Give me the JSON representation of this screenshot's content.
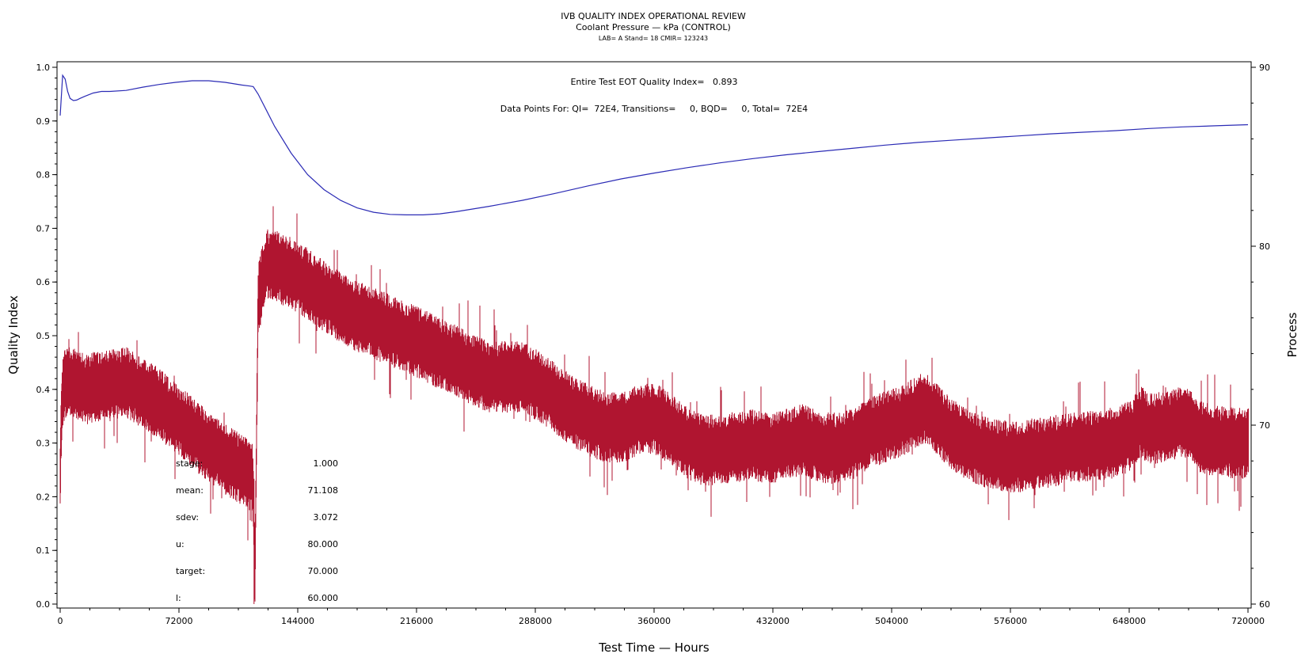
{
  "chart_data": {
    "type": "line",
    "title": "IVB QUALITY INDEX OPERATIONAL REVIEW",
    "subtitle": "Coolant Pressure — kPa (CONTROL)",
    "info_line": "LAB= A Stand= 18 CMIR= 123243",
    "xlabel": "Test Time — Hours",
    "ylabel": "Quality Index",
    "y2label": "Process",
    "xlim": [
      0,
      720000
    ],
    "ylim": [
      0,
      1.0
    ],
    "y2lim": [
      60,
      90
    ],
    "x_ticks": [
      "0",
      "72000",
      "144000",
      "216000",
      "288000",
      "360000",
      "432000",
      "504000",
      "576000",
      "648000",
      "720000"
    ],
    "y_ticks": [
      "0.0",
      "0.1",
      "0.2",
      "0.3",
      "0.4",
      "0.5",
      "0.6",
      "0.7",
      "0.8",
      "0.9",
      "1.0"
    ],
    "y2_ticks": [
      "60",
      "70",
      "80",
      "90"
    ],
    "grid": false,
    "annotations": {
      "quality_index": "Entire Test EOT Quality Index=   0.893",
      "data_points": "Data Points For: QI=  72E4, Transitions=     0, BQD=     0, Total=  72E4"
    },
    "stats": [
      {
        "label": "stage:",
        "value": "1.000"
      },
      {
        "label": "mean:",
        "value": "71.108"
      },
      {
        "label": "sdev:",
        "value": "3.072"
      },
      {
        "label": "u:",
        "value": "80.000"
      },
      {
        "label": "target:",
        "value": "70.000"
      },
      {
        "label": "l:",
        "value": "60.000"
      }
    ],
    "series": [
      {
        "axis": "left",
        "color": "#2b2bb5",
        "x": [
          0,
          1500,
          3000,
          4500,
          6000,
          8000,
          10000,
          12000,
          15000,
          20000,
          25000,
          30000,
          40000,
          50000,
          60000,
          70000,
          80000,
          90000,
          100000,
          110000,
          115000,
          117000,
          120000,
          125000,
          130000,
          140000,
          150000,
          160000,
          170000,
          180000,
          190000,
          200000,
          210000,
          220000,
          230000,
          240000,
          260000,
          280000,
          300000,
          320000,
          340000,
          360000,
          380000,
          400000,
          420000,
          440000,
          460000,
          480000,
          500000,
          520000,
          540000,
          560000,
          580000,
          600000,
          620000,
          640000,
          660000,
          680000,
          700000,
          720000
        ],
        "values": [
          0.91,
          0.985,
          0.978,
          0.955,
          0.942,
          0.938,
          0.939,
          0.942,
          0.946,
          0.952,
          0.955,
          0.955,
          0.957,
          0.963,
          0.968,
          0.972,
          0.975,
          0.975,
          0.972,
          0.967,
          0.965,
          0.964,
          0.95,
          0.92,
          0.89,
          0.84,
          0.8,
          0.772,
          0.752,
          0.738,
          0.73,
          0.726,
          0.725,
          0.725,
          0.727,
          0.731,
          0.741,
          0.752,
          0.765,
          0.779,
          0.792,
          0.803,
          0.813,
          0.822,
          0.83,
          0.837,
          0.843,
          0.849,
          0.855,
          0.86,
          0.864,
          0.868,
          0.872,
          0.876,
          0.879,
          0.882,
          0.886,
          0.889,
          0.891,
          0.893
        ]
      },
      {
        "axis": "right",
        "color": "#b01530",
        "band": 2.0,
        "x": [
          0,
          500,
          1500,
          3000,
          6000,
          10000,
          15000,
          20000,
          30000,
          40000,
          50000,
          60000,
          70000,
          80000,
          90000,
          100000,
          110000,
          117000,
          118000,
          120000,
          125000,
          130000,
          140000,
          150000,
          160000,
          170000,
          180000,
          190000,
          200000,
          210000,
          220000,
          230000,
          240000,
          250000,
          260000,
          270000,
          280000,
          290000,
          300000,
          310000,
          320000,
          330000,
          340000,
          350000,
          360000,
          370000,
          380000,
          390000,
          400000,
          410000,
          420000,
          430000,
          440000,
          450000,
          460000,
          470000,
          480000,
          490000,
          500000,
          510000,
          520000,
          525000,
          530000,
          540000,
          550000,
          560000,
          570000,
          580000,
          590000,
          600000,
          610000,
          620000,
          630000,
          640000,
          650000,
          655000,
          660000,
          670000,
          680000,
          685000,
          690000,
          700000,
          710000,
          720000
        ],
        "values": [
          67.0,
          69.5,
          71.8,
          72.4,
          72.4,
          72.2,
          72.0,
          72.1,
          72.2,
          72.4,
          71.8,
          71.2,
          70.4,
          69.6,
          68.8,
          68.1,
          67.5,
          67.0,
          61.0,
          77.0,
          79.0,
          78.9,
          78.5,
          77.9,
          77.2,
          76.6,
          76.1,
          75.7,
          75.3,
          74.9,
          74.5,
          74.0,
          73.6,
          73.1,
          72.7,
          72.7,
          72.7,
          72.2,
          71.5,
          70.8,
          70.3,
          69.9,
          69.8,
          70.3,
          70.4,
          69.8,
          69.0,
          68.6,
          68.6,
          68.8,
          68.9,
          68.7,
          68.9,
          69.2,
          68.8,
          68.7,
          68.9,
          69.5,
          69.9,
          70.2,
          70.8,
          71.0,
          70.5,
          69.5,
          68.9,
          68.5,
          68.3,
          68.2,
          68.4,
          68.5,
          68.7,
          68.8,
          68.9,
          69.0,
          69.5,
          70.2,
          69.8,
          69.9,
          70.2,
          70.0,
          69.4,
          69.1,
          69.0,
          69.0
        ]
      }
    ]
  }
}
